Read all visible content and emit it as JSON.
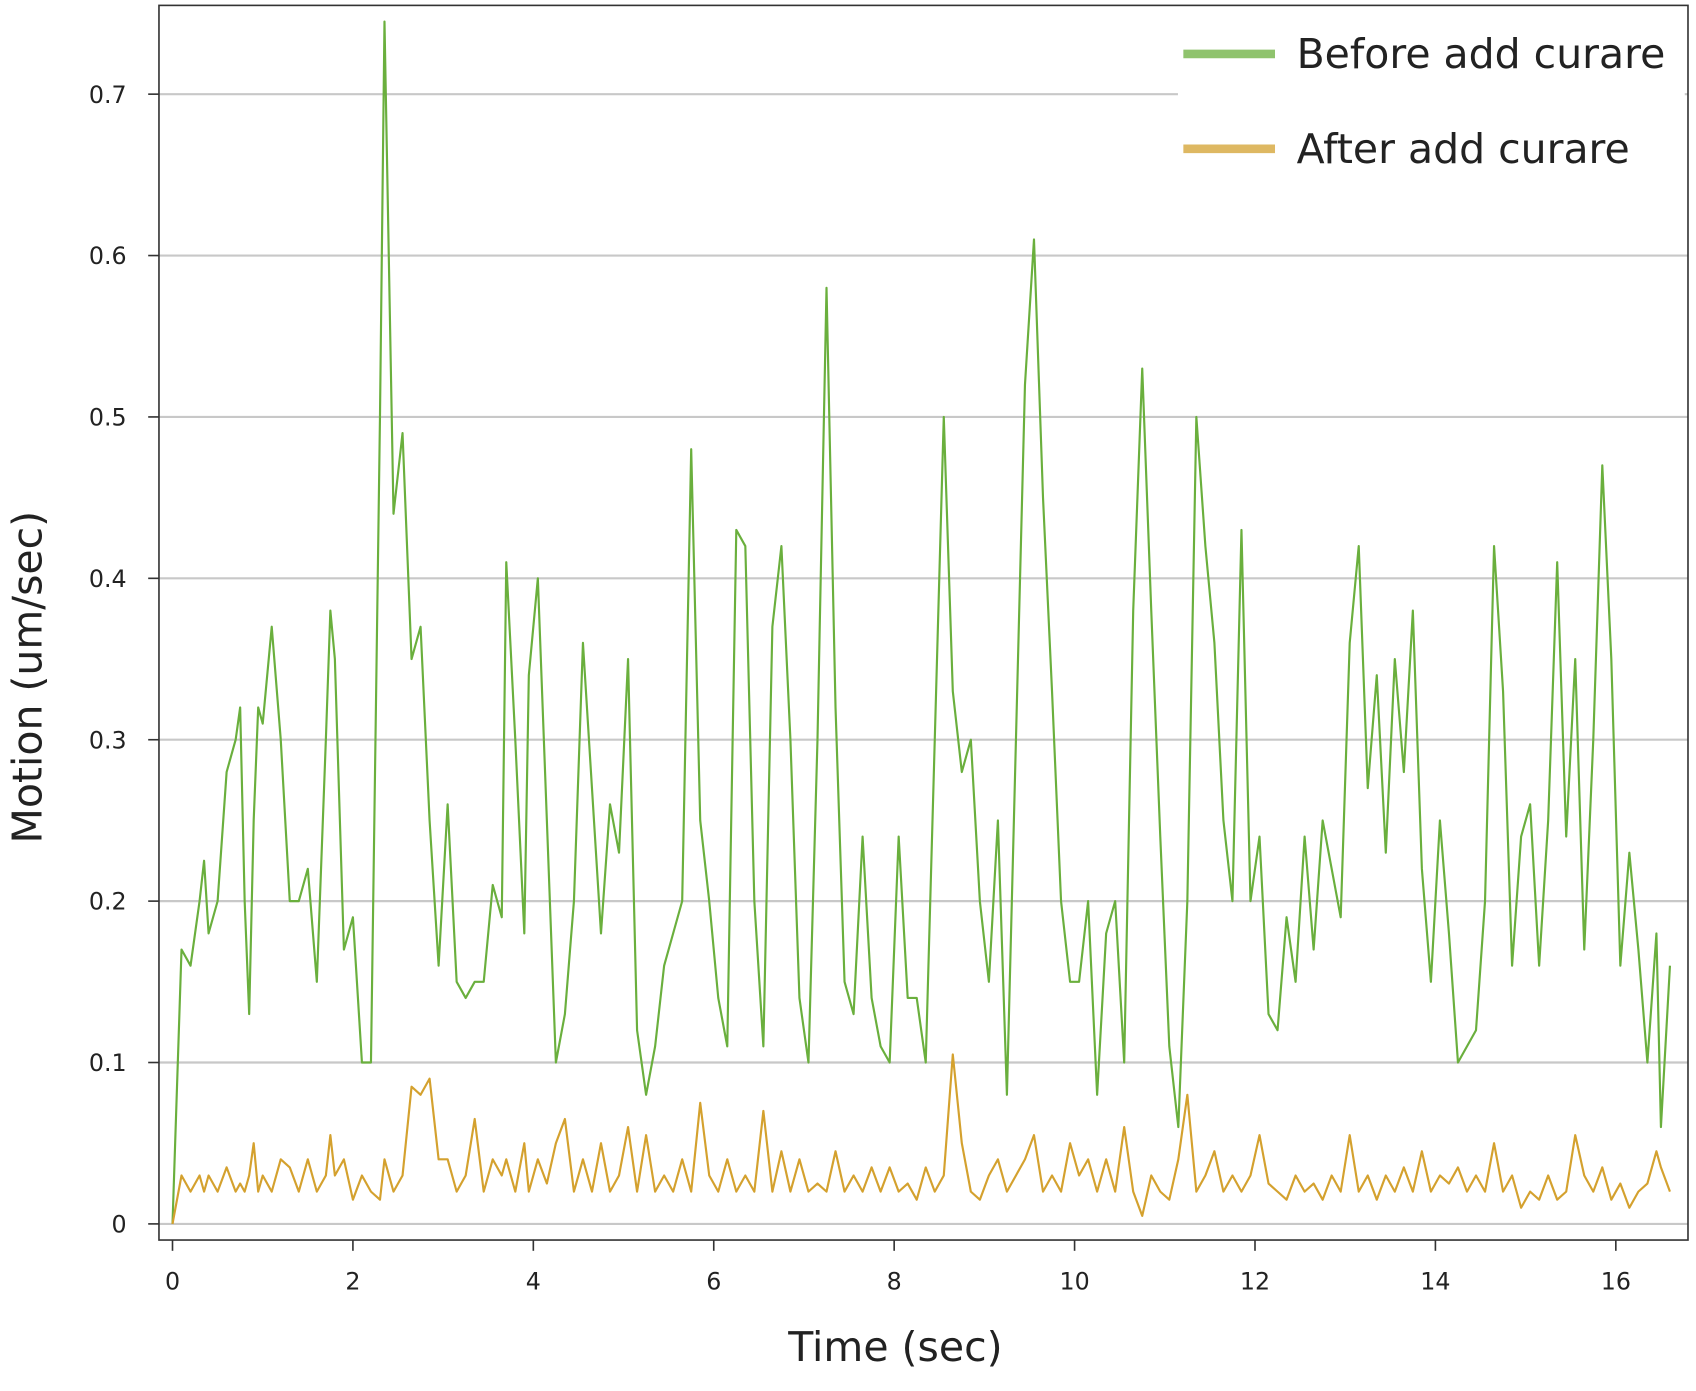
{
  "chart_data": {
    "type": "line",
    "x_label": "Time (sec)",
    "y_label": "Motion (um/sec)",
    "x": [
      0.0,
      0.1,
      0.2,
      0.3,
      0.35,
      0.4,
      0.5,
      0.6,
      0.7,
      0.75,
      0.8,
      0.85,
      0.9,
      0.95,
      1.0,
      1.1,
      1.2,
      1.3,
      1.4,
      1.5,
      1.6,
      1.7,
      1.75,
      1.8,
      1.9,
      2.0,
      2.1,
      2.2,
      2.3,
      2.35,
      2.45,
      2.55,
      2.65,
      2.75,
      2.85,
      2.95,
      3.05,
      3.15,
      3.25,
      3.35,
      3.45,
      3.55,
      3.65,
      3.7,
      3.8,
      3.9,
      3.95,
      4.05,
      4.15,
      4.25,
      4.35,
      4.45,
      4.55,
      4.65,
      4.75,
      4.85,
      4.95,
      5.05,
      5.15,
      5.25,
      5.35,
      5.45,
      5.55,
      5.65,
      5.75,
      5.85,
      5.95,
      6.05,
      6.15,
      6.25,
      6.35,
      6.45,
      6.55,
      6.65,
      6.75,
      6.85,
      6.95,
      7.05,
      7.15,
      7.25,
      7.35,
      7.45,
      7.55,
      7.65,
      7.75,
      7.85,
      7.95,
      8.05,
      8.15,
      8.25,
      8.35,
      8.45,
      8.55,
      8.65,
      8.75,
      8.85,
      8.95,
      9.05,
      9.15,
      9.25,
      9.35,
      9.45,
      9.55,
      9.65,
      9.75,
      9.85,
      9.95,
      10.05,
      10.15,
      10.25,
      10.35,
      10.45,
      10.55,
      10.65,
      10.75,
      10.85,
      10.95,
      11.05,
      11.15,
      11.25,
      11.35,
      11.45,
      11.55,
      11.65,
      11.75,
      11.85,
      11.95,
      12.05,
      12.15,
      12.25,
      12.35,
      12.45,
      12.55,
      12.65,
      12.75,
      12.85,
      12.95,
      13.05,
      13.15,
      13.25,
      13.35,
      13.45,
      13.55,
      13.65,
      13.75,
      13.85,
      13.95,
      14.05,
      14.15,
      14.25,
      14.35,
      14.45,
      14.55,
      14.65,
      14.75,
      14.85,
      14.95,
      15.05,
      15.15,
      15.25,
      15.35,
      15.45,
      15.55,
      15.65,
      15.75,
      15.85,
      15.95,
      16.05,
      16.15,
      16.25,
      16.35,
      16.45,
      16.5,
      16.6
    ],
    "series": [
      {
        "name": "Before add curare",
        "color": "#6aaf3d",
        "values": [
          0,
          0.17,
          0.16,
          0.2,
          0.225,
          0.18,
          0.2,
          0.28,
          0.3,
          0.32,
          0.2,
          0.13,
          0.25,
          0.32,
          0.31,
          0.37,
          0.3,
          0.2,
          0.2,
          0.22,
          0.15,
          0.3,
          0.38,
          0.35,
          0.17,
          0.19,
          0.1,
          0.1,
          0.5,
          0.745,
          0.44,
          0.49,
          0.35,
          0.37,
          0.25,
          0.16,
          0.26,
          0.15,
          0.14,
          0.15,
          0.15,
          0.21,
          0.19,
          0.41,
          0.3,
          0.18,
          0.34,
          0.4,
          0.25,
          0.1,
          0.13,
          0.2,
          0.36,
          0.27,
          0.18,
          0.26,
          0.23,
          0.35,
          0.12,
          0.08,
          0.11,
          0.16,
          0.18,
          0.2,
          0.48,
          0.25,
          0.2,
          0.14,
          0.11,
          0.43,
          0.42,
          0.2,
          0.11,
          0.37,
          0.42,
          0.3,
          0.14,
          0.1,
          0.3,
          0.58,
          0.32,
          0.15,
          0.13,
          0.24,
          0.14,
          0.11,
          0.1,
          0.24,
          0.14,
          0.14,
          0.1,
          0.3,
          0.5,
          0.33,
          0.28,
          0.3,
          0.2,
          0.15,
          0.25,
          0.08,
          0.3,
          0.52,
          0.61,
          0.45,
          0.33,
          0.2,
          0.15,
          0.15,
          0.2,
          0.08,
          0.18,
          0.2,
          0.1,
          0.38,
          0.53,
          0.38,
          0.24,
          0.11,
          0.06,
          0.2,
          0.5,
          0.42,
          0.36,
          0.25,
          0.2,
          0.43,
          0.2,
          0.24,
          0.13,
          0.12,
          0.19,
          0.15,
          0.24,
          0.17,
          0.25,
          0.22,
          0.19,
          0.36,
          0.42,
          0.27,
          0.34,
          0.23,
          0.35,
          0.28,
          0.38,
          0.22,
          0.15,
          0.25,
          0.18,
          0.1,
          0.11,
          0.12,
          0.2,
          0.42,
          0.33,
          0.16,
          0.24,
          0.26,
          0.16,
          0.25,
          0.41,
          0.24,
          0.35,
          0.17,
          0.3,
          0.47,
          0.35,
          0.16,
          0.23,
          0.17,
          0.1,
          0.18,
          0.06,
          0.16
        ]
      },
      {
        "name": "After add curare",
        "color": "#d4a12e",
        "values": [
          0,
          0.03,
          0.02,
          0.03,
          0.02,
          0.03,
          0.02,
          0.035,
          0.02,
          0.025,
          0.02,
          0.03,
          0.05,
          0.02,
          0.03,
          0.02,
          0.04,
          0.035,
          0.02,
          0.04,
          0.02,
          0.03,
          0.055,
          0.03,
          0.04,
          0.015,
          0.03,
          0.02,
          0.015,
          0.04,
          0.02,
          0.03,
          0.085,
          0.08,
          0.09,
          0.04,
          0.04,
          0.02,
          0.03,
          0.065,
          0.02,
          0.04,
          0.03,
          0.04,
          0.02,
          0.05,
          0.02,
          0.04,
          0.025,
          0.05,
          0.065,
          0.02,
          0.04,
          0.02,
          0.05,
          0.02,
          0.03,
          0.06,
          0.02,
          0.055,
          0.02,
          0.03,
          0.02,
          0.04,
          0.02,
          0.075,
          0.03,
          0.02,
          0.04,
          0.02,
          0.03,
          0.02,
          0.07,
          0.02,
          0.045,
          0.02,
          0.04,
          0.02,
          0.025,
          0.02,
          0.045,
          0.02,
          0.03,
          0.02,
          0.035,
          0.02,
          0.035,
          0.02,
          0.025,
          0.015,
          0.035,
          0.02,
          0.03,
          0.105,
          0.05,
          0.02,
          0.015,
          0.03,
          0.04,
          0.02,
          0.03,
          0.04,
          0.055,
          0.02,
          0.03,
          0.02,
          0.05,
          0.03,
          0.04,
          0.02,
          0.04,
          0.02,
          0.06,
          0.02,
          0.005,
          0.03,
          0.02,
          0.015,
          0.04,
          0.08,
          0.02,
          0.03,
          0.045,
          0.02,
          0.03,
          0.02,
          0.03,
          0.055,
          0.025,
          0.02,
          0.015,
          0.03,
          0.02,
          0.025,
          0.015,
          0.03,
          0.02,
          0.055,
          0.02,
          0.03,
          0.015,
          0.03,
          0.02,
          0.035,
          0.02,
          0.045,
          0.02,
          0.03,
          0.025,
          0.035,
          0.02,
          0.03,
          0.02,
          0.05,
          0.02,
          0.03,
          0.01,
          0.02,
          0.015,
          0.03,
          0.015,
          0.02,
          0.055,
          0.03,
          0.02,
          0.035,
          0.015,
          0.025,
          0.01,
          0.02,
          0.025,
          0.045,
          0.035,
          0.02
        ]
      }
    ],
    "xlim": [
      -0.15,
      16.8
    ],
    "ylim": [
      -0.01,
      0.755
    ],
    "xticks": [
      0,
      2,
      4,
      6,
      8,
      10,
      12,
      14,
      16
    ],
    "yticks": [
      0,
      0.1,
      0.2,
      0.3,
      0.4,
      0.5,
      0.6,
      0.7
    ],
    "grid": true,
    "legend": "upper right"
  }
}
